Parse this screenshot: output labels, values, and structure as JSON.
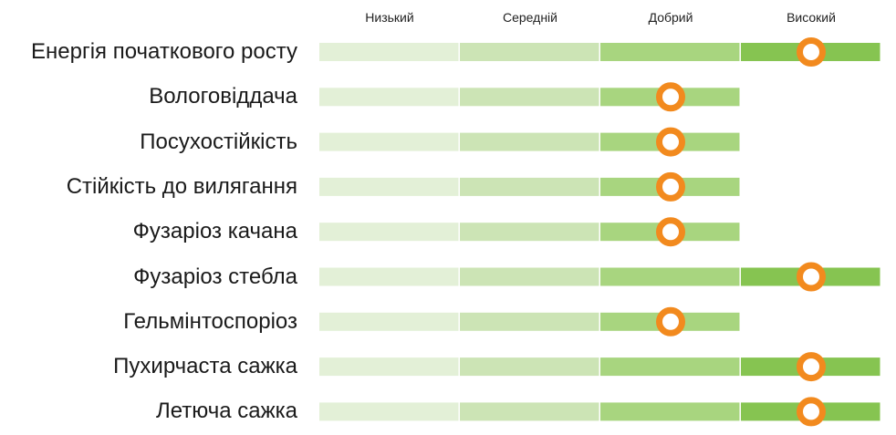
{
  "chart_data": {
    "type": "rating-bar",
    "levels": [
      "Низький",
      "Середній",
      "Добрий",
      "Високий"
    ],
    "level_colors": [
      "#e3f0d7",
      "#cce4b5",
      "#a8d57f",
      "#86c451"
    ],
    "marker_color": "#f28a1e",
    "rows": [
      {
        "label": "Енергія початкового росту",
        "rating": 3.5
      },
      {
        "label": "Вологовіддача",
        "rating": 2.5
      },
      {
        "label": "Посухостійкість",
        "rating": 2.5
      },
      {
        "label": "Стійкість до вилягання",
        "rating": 2.5
      },
      {
        "label": "Фузаріоз качана",
        "rating": 2.5
      },
      {
        "label": "Фузаріоз стебла",
        "rating": 3.5
      },
      {
        "label": "Гельмінтоспоріоз",
        "rating": 2.5
      },
      {
        "label": "Пухирчаста сажка",
        "rating": 3.5
      },
      {
        "label": "Летюча сажка",
        "rating": 3.5
      }
    ],
    "xlim": [
      0,
      4
    ]
  }
}
